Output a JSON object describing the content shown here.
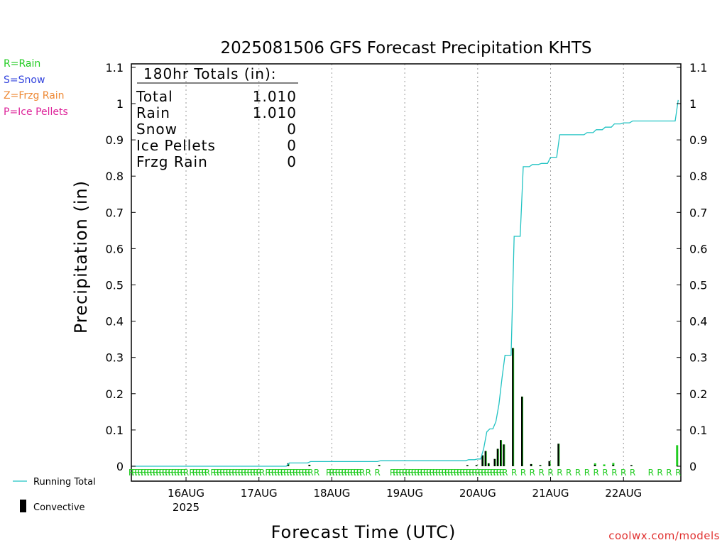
{
  "watermark": "coolwx.com/models",
  "ptype_legend": [
    {
      "text": "R=Rain",
      "color": "#22cc22"
    },
    {
      "text": "S=Snow",
      "color": "#3344dd"
    },
    {
      "text": "Z=Frzg Rain",
      "color": "#ee8833"
    },
    {
      "text": "P=Ice Pellets",
      "color": "#dd2299"
    }
  ],
  "series_legend": {
    "running_total": "Running Total",
    "convective": "Convective"
  },
  "totals_box": {
    "heading": "180hr Totals (in):",
    "rows": [
      {
        "label": "Total",
        "value": "1.010"
      },
      {
        "label": "Rain",
        "value": "1.010"
      },
      {
        "label": "Snow",
        "value": "0"
      },
      {
        "label": "Ice Pellets",
        "value": "0"
      },
      {
        "label": "Frzg Rain",
        "value": "0"
      }
    ]
  },
  "chart_data": {
    "type": "bar",
    "title": "2025081506 GFS Forecast Precipitation KHTS",
    "xlabel": "Forecast Time (UTC)",
    "ylabel": "Precipitation (in)",
    "xlim": [
      "2025-08-15 06Z",
      "2025-08-22 18Z"
    ],
    "ylim": [
      0,
      1.1
    ],
    "yticks": [
      0,
      0.1,
      0.2,
      0.3,
      0.4,
      0.5,
      0.6,
      0.7,
      0.8,
      0.9,
      1,
      1.1
    ],
    "ytick_labels": [
      "0",
      "0.1",
      "0.2",
      "0.3",
      "0.4",
      "0.5",
      "0.6",
      "0.7",
      "0.8",
      "0.9",
      "1",
      "1.1"
    ],
    "xticks": [
      {
        "label": "16AUG",
        "sublabel": "2025",
        "time": "2025-08-16 00Z"
      },
      {
        "label": "17AUG",
        "time": "2025-08-17 00Z"
      },
      {
        "label": "18AUG",
        "time": "2025-08-18 00Z"
      },
      {
        "label": "19AUG",
        "time": "2025-08-19 00Z"
      },
      {
        "label": "20AUG",
        "time": "2025-08-20 00Z"
      },
      {
        "label": "21AUG",
        "time": "2025-08-21 00Z"
      },
      {
        "label": "22AUG",
        "time": "2025-08-22 00Z"
      }
    ],
    "grid": "vertical dotted at day boundaries",
    "bars": [
      {
        "hour": 52,
        "total": 0.008,
        "convective": 0.008
      },
      {
        "hour": 59,
        "total": 0.004,
        "convective": 0.004
      },
      {
        "hour": 82,
        "total": 0.003,
        "convective": 0.003
      },
      {
        "hour": 111,
        "total": 0.003,
        "convective": 0.003
      },
      {
        "hour": 114,
        "total": 0.003,
        "convective": 0.003
      },
      {
        "hour": 116,
        "total": 0.03,
        "convective": 0.03
      },
      {
        "hour": 117,
        "total": 0.042,
        "convective": 0.042
      },
      {
        "hour": 118,
        "total": 0.008,
        "convective": 0.008
      },
      {
        "hour": 120,
        "total": 0.02,
        "convective": 0.02
      },
      {
        "hour": 121,
        "total": 0.048,
        "convective": 0.048
      },
      {
        "hour": 122,
        "total": 0.072,
        "convective": 0.072
      },
      {
        "hour": 123,
        "total": 0.06,
        "convective": 0.06
      },
      {
        "hour": 126,
        "total": 0.326,
        "convective": 0.326
      },
      {
        "hour": 129,
        "total": 0.192,
        "convective": 0.192
      },
      {
        "hour": 132,
        "total": 0.006,
        "convective": 0.006
      },
      {
        "hour": 135,
        "total": 0.003,
        "convective": 0.003
      },
      {
        "hour": 138,
        "total": 0.014,
        "convective": 0.014
      },
      {
        "hour": 141,
        "total": 0.062,
        "convective": 0.062
      },
      {
        "hour": 153,
        "total": 0.008,
        "convective": 0.004
      },
      {
        "hour": 156,
        "total": 0.005,
        "convective": 0.0
      },
      {
        "hour": 159,
        "total": 0.009,
        "convective": 0.004
      },
      {
        "hour": 165,
        "total": 0.003,
        "convective": 0.003
      },
      {
        "hour": 180,
        "total": 0.058,
        "convective": 0.0
      }
    ],
    "running_total": [
      {
        "hour": 0,
        "value": 0
      },
      {
        "hour": 51,
        "value": 0
      },
      {
        "hour": 52,
        "value": 0.009
      },
      {
        "hour": 58,
        "value": 0.009
      },
      {
        "hour": 59,
        "value": 0.013
      },
      {
        "hour": 81,
        "value": 0.013
      },
      {
        "hour": 82,
        "value": 0.015
      },
      {
        "hour": 110,
        "value": 0.015
      },
      {
        "hour": 111,
        "value": 0.018
      },
      {
        "hour": 113,
        "value": 0.018
      },
      {
        "hour": 114,
        "value": 0.02
      },
      {
        "hour": 115,
        "value": 0.02
      },
      {
        "hour": 116,
        "value": 0.05
      },
      {
        "hour": 117,
        "value": 0.095
      },
      {
        "hour": 118,
        "value": 0.103
      },
      {
        "hour": 119,
        "value": 0.103
      },
      {
        "hour": 120,
        "value": 0.123
      },
      {
        "hour": 121,
        "value": 0.171
      },
      {
        "hour": 122,
        "value": 0.243
      },
      {
        "hour": 123,
        "value": 0.306
      },
      {
        "hour": 125,
        "value": 0.306
      },
      {
        "hour": 126,
        "value": 0.634
      },
      {
        "hour": 128,
        "value": 0.634
      },
      {
        "hour": 129,
        "value": 0.826
      },
      {
        "hour": 131,
        "value": 0.826
      },
      {
        "hour": 132,
        "value": 0.832
      },
      {
        "hour": 134,
        "value": 0.832
      },
      {
        "hour": 135,
        "value": 0.835
      },
      {
        "hour": 137,
        "value": 0.835
      },
      {
        "hour": 138,
        "value": 0.852
      },
      {
        "hour": 140,
        "value": 0.852
      },
      {
        "hour": 141,
        "value": 0.914
      },
      {
        "hour": 149,
        "value": 0.914
      },
      {
        "hour": 150,
        "value": 0.92
      },
      {
        "hour": 152,
        "value": 0.92
      },
      {
        "hour": 153,
        "value": 0.928
      },
      {
        "hour": 155,
        "value": 0.928
      },
      {
        "hour": 156,
        "value": 0.935
      },
      {
        "hour": 158,
        "value": 0.935
      },
      {
        "hour": 159,
        "value": 0.944
      },
      {
        "hour": 161,
        "value": 0.944
      },
      {
        "hour": 162,
        "value": 0.947
      },
      {
        "hour": 164,
        "value": 0.947
      },
      {
        "hour": 165,
        "value": 0.952
      },
      {
        "hour": 179,
        "value": 0.952
      },
      {
        "hour": 180,
        "value": 1.01
      }
    ],
    "ptype_markers": {
      "symbol": "R",
      "hours": [
        0,
        1,
        2,
        3,
        4,
        5,
        6,
        7,
        8,
        9,
        10,
        11,
        12,
        13,
        14,
        15,
        16,
        17,
        18,
        20,
        21,
        22,
        23,
        24,
        25,
        27,
        28,
        29,
        30,
        31,
        32,
        33,
        34,
        35,
        36,
        37,
        38,
        39,
        40,
        41,
        42,
        43,
        45,
        46,
        47,
        48,
        49,
        50,
        51,
        52,
        53,
        54,
        55,
        56,
        57,
        58,
        59,
        61,
        65,
        66,
        67,
        68,
        69,
        70,
        71,
        72,
        73,
        74,
        75,
        76,
        78,
        81,
        86,
        87,
        88,
        89,
        90,
        91,
        92,
        93,
        94,
        95,
        96,
        97,
        98,
        99,
        100,
        101,
        102,
        103,
        104,
        105,
        106,
        107,
        108,
        109,
        110,
        111,
        112,
        113,
        114,
        115,
        116,
        117,
        118,
        119,
        120,
        121,
        122,
        123,
        126,
        129,
        132,
        135,
        138,
        141,
        144,
        147,
        150,
        153,
        156,
        159,
        162,
        165,
        171,
        174,
        177,
        180
      ]
    }
  }
}
